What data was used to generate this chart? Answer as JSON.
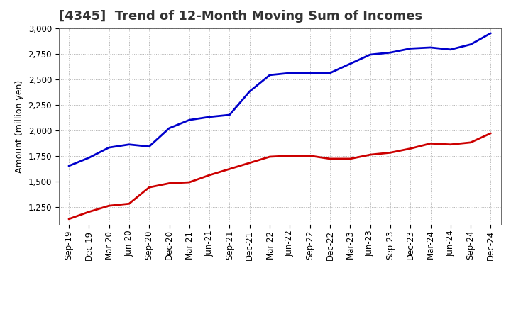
{
  "title": "[4345]  Trend of 12-Month Moving Sum of Incomes",
  "ylabel": "Amount (million yen)",
  "background_color": "#ffffff",
  "plot_background": "#ffffff",
  "grid_color": "#aaaaaa",
  "x_labels": [
    "Sep-19",
    "Dec-19",
    "Mar-20",
    "Jun-20",
    "Sep-20",
    "Dec-20",
    "Mar-21",
    "Jun-21",
    "Sep-21",
    "Dec-21",
    "Mar-22",
    "Jun-22",
    "Sep-22",
    "Dec-22",
    "Mar-23",
    "Jun-23",
    "Sep-23",
    "Dec-23",
    "Mar-24",
    "Jun-24",
    "Sep-24",
    "Dec-24"
  ],
  "ordinary_income": [
    1650,
    1730,
    1830,
    1860,
    1840,
    2020,
    2100,
    2130,
    2150,
    2380,
    2540,
    2560,
    2560,
    2560,
    2650,
    2740,
    2760,
    2800,
    2810,
    2790,
    2840,
    2950
  ],
  "net_income": [
    1130,
    1200,
    1260,
    1280,
    1440,
    1480,
    1490,
    1560,
    1620,
    1680,
    1740,
    1750,
    1750,
    1720,
    1720,
    1760,
    1780,
    1820,
    1870,
    1860,
    1880,
    1970
  ],
  "ordinary_color": "#0000cc",
  "net_color": "#cc0000",
  "ylim_min": 1075,
  "ylim_max": 3000,
  "yticks": [
    1250,
    1500,
    1750,
    2000,
    2250,
    2500,
    2750,
    3000
  ],
  "line_width": 2.0,
  "title_fontsize": 13,
  "axis_fontsize": 9,
  "tick_fontsize": 8.5,
  "legend_fontsize": 9,
  "title_color": "#333333"
}
